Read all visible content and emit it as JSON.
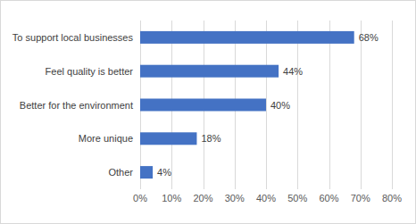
{
  "chart_data": {
    "type": "bar",
    "orientation": "horizontal",
    "categories": [
      "To support local businesses",
      "Feel quality is better",
      "Better for the environment",
      "More unique",
      "Other"
    ],
    "values": [
      68,
      44,
      40,
      18,
      4
    ],
    "value_labels": [
      "68%",
      "44%",
      "40%",
      "18%",
      "4%"
    ],
    "data_labels": true,
    "color": "#4472c4",
    "xlim": [
      0,
      80
    ],
    "xticks": [
      {
        "value": 0,
        "label": "0%"
      },
      {
        "value": 10,
        "label": "10%"
      },
      {
        "value": 20,
        "label": "20%"
      },
      {
        "value": 30,
        "label": "30%"
      },
      {
        "value": 40,
        "label": "40%"
      },
      {
        "value": 50,
        "label": "50%"
      },
      {
        "value": 60,
        "label": "60%"
      },
      {
        "value": 70,
        "label": "70%"
      },
      {
        "value": 80,
        "label": "80%"
      }
    ],
    "grid": true
  }
}
